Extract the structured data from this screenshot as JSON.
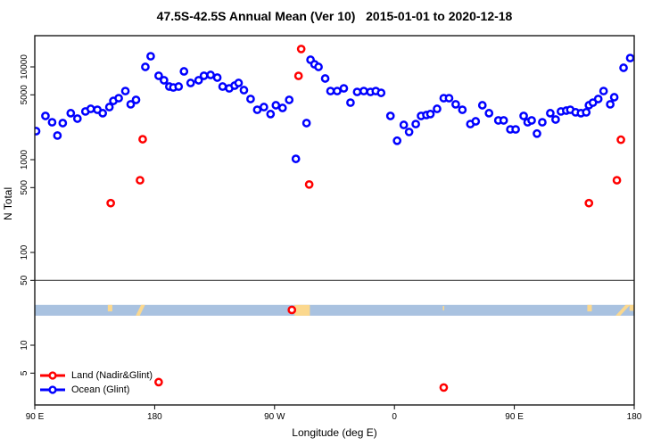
{
  "title": "47.5S-42.5S Annual Mean (Ver 10)   2015-01-01 to 2020-12-18",
  "legend": {
    "entries": [
      {
        "label": "Land (Nadir&Glint)",
        "color": "#ff0000"
      },
      {
        "label": "Ocean (Glint)",
        "color": "#0000ff"
      }
    ]
  },
  "chart_data": {
    "type": "scatter",
    "title": "47.5S-42.5S Annual Mean (Ver 10)   2015-01-01 to 2020-12-18",
    "xlabel": "Longitude (deg E)",
    "ylabel": "N Total",
    "y_scale": "log",
    "xlim": [
      90,
      540
    ],
    "ylim": [
      2.3,
      21700
    ],
    "grid": false,
    "legend_position": "bottom-left",
    "x_ticks": [
      {
        "lon": 90,
        "label": "90 E"
      },
      {
        "lon": 180,
        "label": "180"
      },
      {
        "lon": 270,
        "label": "90 W"
      },
      {
        "lon": 360,
        "label": "0"
      },
      {
        "lon": 450,
        "label": "90 E"
      },
      {
        "lon": 540,
        "label": "180"
      }
    ],
    "y_ticks": [
      5,
      10,
      50,
      100,
      500,
      1000,
      5000,
      10000
    ],
    "reference_line_n": 50,
    "reference_line_color": "#404040",
    "map_band": {
      "description": "latitude-band strip map: ocean blue with land patches",
      "ocean_color": "#a9c2e0",
      "land_color": "#fbd88e",
      "n_top": 27.2,
      "n_bottom": 20.8,
      "patches": [
        {
          "type": "rect",
          "lon": [
            144.8,
            148.2
          ],
          "frac": [
            0,
            0.6
          ]
        },
        {
          "type": "poly",
          "pts": [
            [
              165.8,
              1
            ],
            [
              168.8,
              1
            ],
            [
              172.8,
              0
            ],
            [
              169.8,
              0
            ]
          ]
        },
        {
          "type": "rect",
          "lon": [
            285.0,
            296.5
          ],
          "frac": [
            0,
            1
          ]
        },
        {
          "type": "rect",
          "lon": [
            396.3,
            397.4
          ],
          "frac": [
            0.1,
            0.5
          ]
        },
        {
          "type": "rect",
          "lon": [
            504.8,
            508.2
          ],
          "frac": [
            0,
            0.6
          ]
        },
        {
          "type": "poly",
          "pts": [
            [
              526.0,
              1
            ],
            [
              529.5,
              1
            ],
            [
              537.0,
              0
            ],
            [
              533.5,
              0
            ]
          ]
        },
        {
          "type": "rect",
          "lon": [
            536.5,
            539.8
          ],
          "frac": [
            0,
            0.55
          ]
        }
      ]
    },
    "series": [
      {
        "name": "Land (Nadir&Glint)",
        "color": "#ff0000",
        "points": [
          [
            147,
            340
          ],
          [
            169,
            600
          ],
          [
            171,
            1660
          ],
          [
            183,
            4
          ],
          [
            283,
            24
          ],
          [
            288,
            8000
          ],
          [
            290,
            15600
          ],
          [
            296,
            540
          ],
          [
            397,
            3.5
          ],
          [
            506,
            340
          ],
          [
            527,
            600
          ],
          [
            530,
            1640
          ]
        ]
      },
      {
        "name": "Ocean (Glint)",
        "color": "#0000ff",
        "points": [
          [
            91,
            2030
          ],
          [
            98,
            2960
          ],
          [
            103,
            2530
          ],
          [
            107,
            1820
          ],
          [
            111,
            2480
          ],
          [
            117,
            3170
          ],
          [
            122,
            2770
          ],
          [
            128,
            3310
          ],
          [
            132,
            3530
          ],
          [
            137,
            3450
          ],
          [
            141,
            3170
          ],
          [
            146,
            3690
          ],
          [
            149,
            4300
          ],
          [
            153,
            4600
          ],
          [
            158,
            5490
          ],
          [
            162,
            3950
          ],
          [
            166,
            4410
          ],
          [
            173,
            10000
          ],
          [
            177,
            13030
          ],
          [
            183,
            8020
          ],
          [
            187,
            7180
          ],
          [
            191,
            6140
          ],
          [
            194,
            6000
          ],
          [
            198,
            6140
          ],
          [
            202,
            8950
          ],
          [
            207,
            6710
          ],
          [
            213,
            7180
          ],
          [
            217,
            8020
          ],
          [
            222,
            8190
          ],
          [
            227,
            7670
          ],
          [
            231,
            6140
          ],
          [
            236,
            5870
          ],
          [
            240,
            6280
          ],
          [
            243,
            6710
          ],
          [
            247,
            5620
          ],
          [
            252,
            4510
          ],
          [
            257,
            3450
          ],
          [
            262,
            3690
          ],
          [
            267,
            3100
          ],
          [
            271,
            3860
          ],
          [
            276,
            3610
          ],
          [
            281,
            4410
          ],
          [
            286,
            1020
          ],
          [
            294,
            2480
          ],
          [
            297,
            11930
          ],
          [
            300,
            10670
          ],
          [
            303,
            10000
          ],
          [
            308,
            7500
          ],
          [
            312,
            5490
          ],
          [
            317,
            5490
          ],
          [
            322,
            5870
          ],
          [
            327,
            4120
          ],
          [
            332,
            5370
          ],
          [
            337,
            5490
          ],
          [
            342,
            5370
          ],
          [
            346,
            5490
          ],
          [
            350,
            5250
          ],
          [
            357,
            2960
          ],
          [
            362,
            1600
          ],
          [
            367,
            2370
          ],
          [
            371,
            1990
          ],
          [
            376,
            2420
          ],
          [
            380,
            2960
          ],
          [
            384,
            3030
          ],
          [
            387,
            3100
          ],
          [
            392,
            3530
          ],
          [
            397,
            4600
          ],
          [
            401,
            4600
          ],
          [
            406,
            3950
          ],
          [
            411,
            3450
          ],
          [
            417,
            2420
          ],
          [
            421,
            2590
          ],
          [
            426,
            3860
          ],
          [
            431,
            3170
          ],
          [
            438,
            2650
          ],
          [
            442,
            2650
          ],
          [
            447,
            2120
          ],
          [
            451,
            2120
          ],
          [
            457,
            2960
          ],
          [
            460,
            2530
          ],
          [
            463,
            2650
          ],
          [
            467,
            1910
          ],
          [
            471,
            2530
          ],
          [
            477,
            3170
          ],
          [
            481,
            2710
          ],
          [
            485,
            3310
          ],
          [
            489,
            3380
          ],
          [
            492,
            3450
          ],
          [
            496,
            3240
          ],
          [
            500,
            3170
          ],
          [
            504,
            3240
          ],
          [
            506,
            3860
          ],
          [
            509,
            4120
          ],
          [
            513,
            4510
          ],
          [
            517,
            5490
          ],
          [
            522,
            3950
          ],
          [
            525,
            4710
          ],
          [
            532,
            9780
          ],
          [
            537,
            12460
          ]
        ]
      }
    ]
  }
}
